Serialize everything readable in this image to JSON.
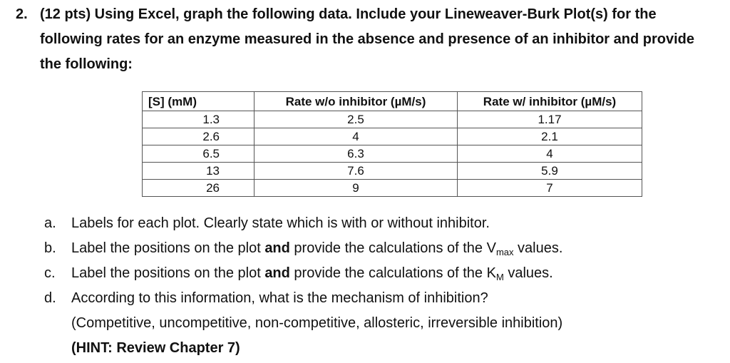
{
  "question": {
    "number": "2.",
    "text": "(12 pts) Using Excel, graph the following data. Include your Lineweaver-Burk Plot(s) for the following rates for an enzyme measured in the absence and presence of an inhibitor and provide the following:"
  },
  "table": {
    "headers": [
      "[S] (mM)",
      "Rate w/o inhibitor (µM/s)",
      "Rate w/ inhibitor (µM/s)"
    ],
    "rows": [
      [
        "1.3",
        "2.5",
        "1.17"
      ],
      [
        "2.6",
        "4",
        "2.1"
      ],
      [
        "6.5",
        "6.3",
        "4"
      ],
      [
        "13",
        "7.6",
        "5.9"
      ],
      [
        "26",
        "9",
        "7"
      ]
    ]
  },
  "items": {
    "a": {
      "label": "a.",
      "text": "Labels for each plot. Clearly state which is with or without inhibitor."
    },
    "b": {
      "label": "b.",
      "pre": "Label the positions on the plot ",
      "bold": "and",
      "post": " provide the calculations of the V",
      "sub": "max",
      "end": " values."
    },
    "c": {
      "label": "c.",
      "pre": "Label the positions on the plot ",
      "bold": "and",
      "post": " provide the calculations of the K",
      "sub": "M",
      "end": " values."
    },
    "d": {
      "label": "d.",
      "text": "According to this information, what is the mechanism of inhibition?",
      "line2": "(Competitive, uncompetitive, non-competitive, allosteric, irreversible inhibition)",
      "line3": "(HINT: Review Chapter 7)"
    }
  }
}
